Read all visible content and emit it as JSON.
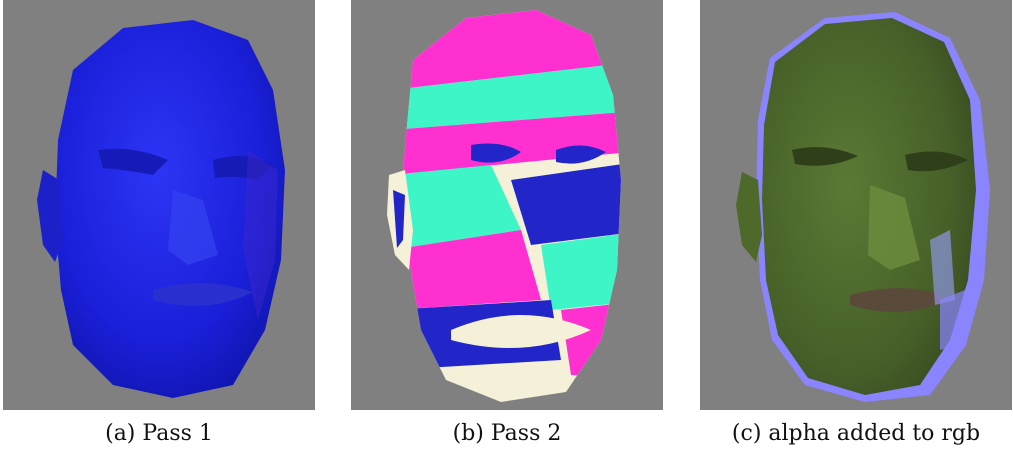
{
  "figure": {
    "panels": [
      {
        "caption": "(a) Pass 1",
        "image": "blue-shaded-face-render"
      },
      {
        "caption": "(b) Pass 2",
        "image": "banded-color-face-render"
      },
      {
        "caption": "(c) alpha added to rgb",
        "image": "green-normal-face-render"
      }
    ],
    "colors": {
      "background": "#808080",
      "pass1_face": "#1f25e8",
      "pass2_pink": "#ff2fd0",
      "pass2_cyan": "#3df5c6",
      "pass2_blue": "#2226c8",
      "pass2_cream": "#f4f1d8",
      "pass3_face": "#4c6a2c",
      "pass3_rim": "#8b84ff"
    }
  }
}
